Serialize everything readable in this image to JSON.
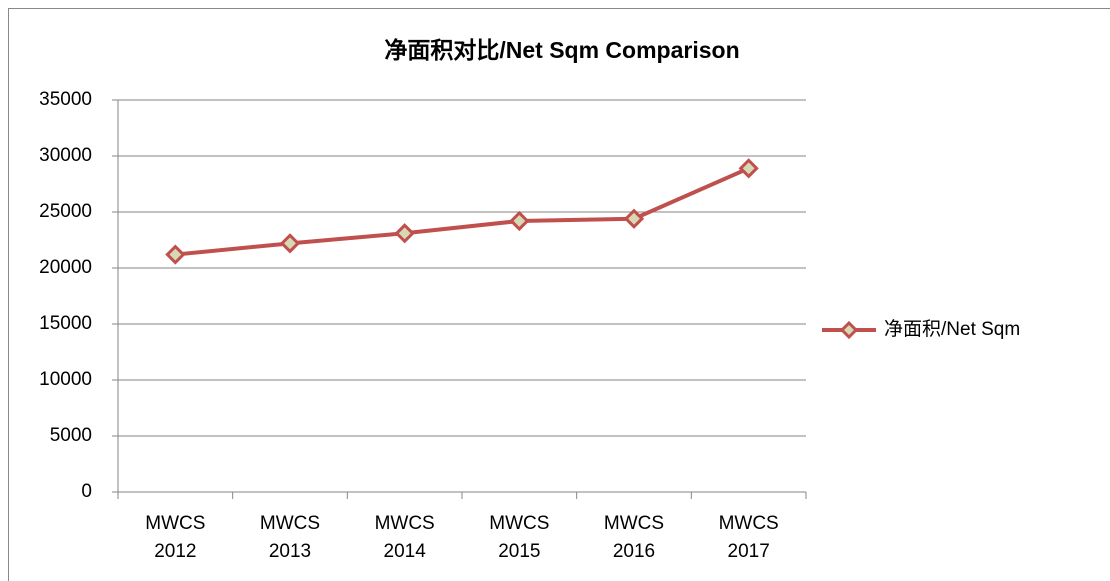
{
  "chart_data": {
    "type": "line",
    "title": "净面积对比/Net Sqm Comparison",
    "categories": [
      "MWCS 2012",
      "MWCS 2013",
      "MWCS 2014",
      "MWCS 2015",
      "MWCS 2016",
      "MWCS 2017"
    ],
    "series": [
      {
        "name": "净面积/Net Sqm",
        "color": "#c0504d",
        "values": [
          21200,
          22200,
          23100,
          24200,
          24400,
          28900
        ]
      }
    ],
    "ylim": [
      0,
      35000
    ],
    "yticks": [
      0,
      5000,
      10000,
      15000,
      20000,
      25000,
      30000,
      35000
    ],
    "grid": true,
    "legend": "right"
  }
}
